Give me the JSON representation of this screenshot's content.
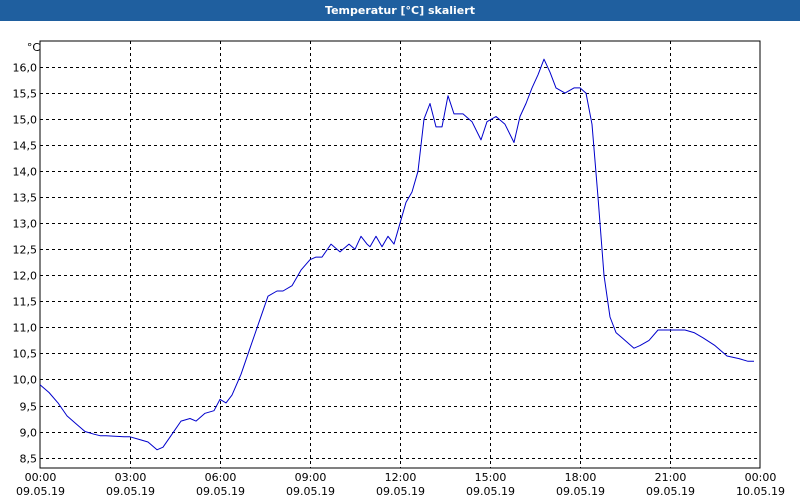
{
  "window": {
    "title": "Temperatur [°C] skaliert"
  },
  "chart_data": {
    "type": "line",
    "title": "Temperatur [°C] skaliert",
    "ylabel": "°C",
    "ylim": [
      8.3,
      16.5
    ],
    "yticks": [
      "8,5",
      "9,0",
      "9,5",
      "10,0",
      "10,5",
      "11,0",
      "11,5",
      "12,0",
      "12,5",
      "13,0",
      "13,5",
      "14,0",
      "14,5",
      "15,0",
      "15,5",
      "16,0"
    ],
    "ytick_values": [
      8.5,
      9.0,
      9.5,
      10.0,
      10.5,
      11.0,
      11.5,
      12.0,
      12.5,
      13.0,
      13.5,
      14.0,
      14.5,
      15.0,
      15.5,
      16.0
    ],
    "xlim": [
      0,
      24
    ],
    "xticks": [
      {
        "hours": 0,
        "time": "00:00",
        "date": "09.05.19"
      },
      {
        "hours": 3,
        "time": "03:00",
        "date": "09.05.19"
      },
      {
        "hours": 6,
        "time": "06:00",
        "date": "09.05.19"
      },
      {
        "hours": 9,
        "time": "09:00",
        "date": "09.05.19"
      },
      {
        "hours": 12,
        "time": "12:00",
        "date": "09.05.19"
      },
      {
        "hours": 15,
        "time": "15:00",
        "date": "09.05.19"
      },
      {
        "hours": 18,
        "time": "18:00",
        "date": "09.05.19"
      },
      {
        "hours": 21,
        "time": "21:00",
        "date": "09.05.19"
      },
      {
        "hours": 24,
        "time": "00:00",
        "date": "10.05.19"
      }
    ],
    "grid": true,
    "series": [
      {
        "color": "#0000cc",
        "x": [
          0.0,
          0.3,
          0.6,
          0.9,
          1.2,
          1.5,
          1.8,
          2.0,
          2.2,
          2.5,
          2.8,
          3.0,
          3.3,
          3.6,
          3.9,
          4.1,
          4.4,
          4.7,
          5.0,
          5.2,
          5.5,
          5.8,
          6.0,
          6.2,
          6.4,
          6.7,
          7.0,
          7.3,
          7.6,
          7.9,
          8.1,
          8.4,
          8.7,
          9.0,
          9.2,
          9.4,
          9.7,
          10.0,
          10.1,
          10.3,
          10.5,
          10.7,
          10.9,
          11.0,
          11.2,
          11.4,
          11.6,
          11.8,
          12.0,
          12.2,
          12.4,
          12.6,
          12.8,
          13.0,
          13.2,
          13.4,
          13.6,
          13.8,
          14.1,
          14.4,
          14.7,
          14.9,
          15.2,
          15.5,
          15.8,
          16.0,
          16.2,
          16.4,
          16.6,
          16.8,
          17.0,
          17.2,
          17.5,
          17.8,
          18.0,
          18.2,
          18.4,
          18.6,
          18.8,
          19.0,
          19.2,
          19.4,
          19.6,
          19.8,
          20.0,
          20.3,
          20.6,
          20.9,
          21.2,
          21.5,
          21.8,
          22.1,
          22.5,
          22.9,
          23.3,
          23.6,
          23.8
        ],
        "y": [
          9.9,
          9.75,
          9.55,
          9.3,
          9.15,
          9.0,
          8.95,
          8.92,
          8.92,
          8.91,
          8.9,
          8.9,
          8.85,
          8.8,
          8.65,
          8.7,
          8.95,
          9.2,
          9.25,
          9.2,
          9.35,
          9.4,
          9.62,
          9.55,
          9.7,
          10.1,
          10.6,
          11.1,
          11.6,
          11.7,
          11.7,
          11.8,
          12.1,
          12.3,
          12.35,
          12.35,
          12.6,
          12.45,
          12.5,
          12.6,
          12.5,
          12.75,
          12.6,
          12.55,
          12.75,
          12.55,
          12.75,
          12.6,
          13.0,
          13.4,
          13.6,
          14.0,
          15.0,
          15.3,
          14.85,
          14.85,
          15.45,
          15.1,
          15.1,
          14.95,
          14.6,
          14.95,
          15.05,
          14.9,
          14.55,
          15.05,
          15.3,
          15.6,
          15.85,
          16.15,
          15.9,
          15.6,
          15.5,
          15.6,
          15.6,
          15.5,
          14.9,
          13.5,
          12.0,
          11.2,
          10.9,
          10.8,
          10.7,
          10.6,
          10.65,
          10.75,
          10.95,
          10.95,
          10.95,
          10.95,
          10.9,
          10.8,
          10.65,
          10.45,
          10.4,
          10.35,
          10.35
        ]
      }
    ]
  }
}
